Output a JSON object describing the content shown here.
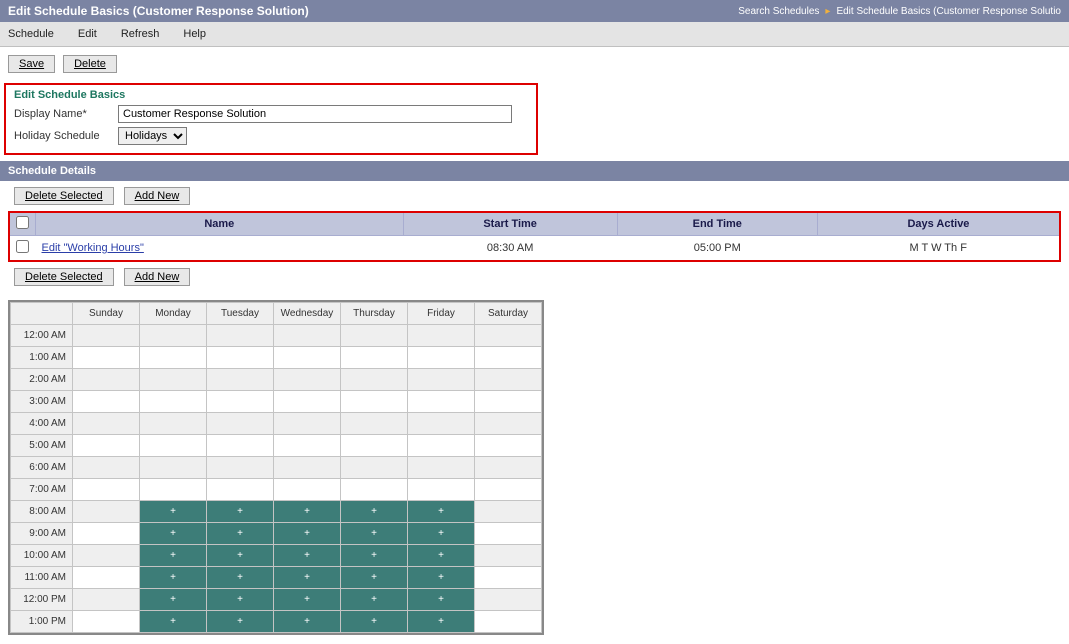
{
  "titlebar": {
    "title": "Edit Schedule Basics  (Customer Response Solution)",
    "breadcrumb_link": "Search Schedules",
    "breadcrumb_current": "Edit Schedule Basics  (Customer Response Solutio"
  },
  "menubar": {
    "schedule": "Schedule",
    "edit": "Edit",
    "refresh": "Refresh",
    "help": "Help"
  },
  "toolbar": {
    "save": "Save",
    "delete": "Delete"
  },
  "basics": {
    "legend": "Edit Schedule Basics",
    "display_name_label": "Display Name*",
    "display_name_value": "Customer Response Solution",
    "holiday_label": "Holiday Schedule",
    "holiday_selected": "Holidays"
  },
  "details": {
    "header": "Schedule Details",
    "delete_selected": "Delete Selected",
    "add_new": "Add New",
    "cols": {
      "name": "Name",
      "start": "Start Time",
      "end": "End Time",
      "days": "Days Active"
    },
    "row": {
      "link": "Edit \"Working Hours\"",
      "start": "08:30 AM",
      "end": "05:00 PM",
      "days": "M T W Th F"
    }
  },
  "calendar": {
    "days": [
      "Sunday",
      "Monday",
      "Tuesday",
      "Wednesday",
      "Thursday",
      "Friday",
      "Saturday"
    ],
    "hours": [
      "12:00 AM",
      "1:00 AM",
      "2:00 AM",
      "3:00 AM",
      "4:00 AM",
      "5:00 AM",
      "6:00 AM",
      "7:00 AM",
      "8:00 AM",
      "9:00 AM",
      "10:00 AM",
      "11:00 AM",
      "12:00 PM",
      "1:00 PM"
    ],
    "busy_start_index": 8,
    "busy_day_indices": [
      1,
      2,
      3,
      4,
      5
    ],
    "busy_marker": "+",
    "colors": {
      "busy": "#3d7d78",
      "header_bg": "#7b84a3",
      "highlight_border": "#dd0000",
      "grid_header": "#c0c5db"
    }
  }
}
